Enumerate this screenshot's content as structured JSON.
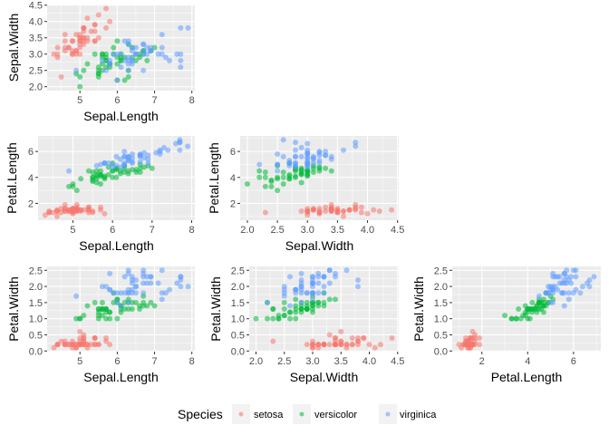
{
  "legend": {
    "title": "Species",
    "entries": [
      {
        "label": "setosa",
        "color": "#F8766D"
      },
      {
        "label": "versicolor",
        "color": "#00BA38"
      },
      {
        "label": "virginica",
        "color": "#619CFF"
      }
    ],
    "placement": "bottom"
  },
  "chart_data": {
    "type": "scatter",
    "title": "",
    "grid": true,
    "panels": [
      {
        "x": "Sepal.Length",
        "y": "Sepal.Width",
        "xlabel": "Sepal.Length",
        "ylabel": "Sepal.Width",
        "xlim": [
          4.12,
          8.08
        ],
        "ylim": [
          1.88,
          4.52
        ],
        "xticks": [
          "5",
          "6",
          "7",
          "8"
        ],
        "yticks": [
          "2.0",
          "2.5",
          "3.0",
          "3.5",
          "4.0",
          "4.5"
        ]
      },
      {
        "x": "Sepal.Length",
        "y": "Petal.Length",
        "xlabel": "Sepal.Length",
        "ylabel": "Petal.Length",
        "xlim": [
          4.12,
          8.08
        ],
        "ylim": [
          0.705,
          7.195
        ],
        "xticks": [
          "5",
          "6",
          "7",
          "8"
        ],
        "yticks": [
          "2",
          "4",
          "6"
        ]
      },
      {
        "x": "Sepal.Width",
        "y": "Petal.Length",
        "xlabel": "Sepal.Width",
        "ylabel": "Petal.Length",
        "xlim": [
          1.88,
          4.52
        ],
        "ylim": [
          0.705,
          7.195
        ],
        "xticks": [
          "2.0",
          "2.5",
          "3.0",
          "3.5",
          "4.0",
          "4.5"
        ],
        "yticks": [
          "2",
          "4",
          "6"
        ]
      },
      {
        "x": "Sepal.Length",
        "y": "Petal.Width",
        "xlabel": "Sepal.Length",
        "ylabel": "Petal.Width",
        "xlim": [
          4.12,
          8.08
        ],
        "ylim": [
          -0.02,
          2.62
        ],
        "xticks": [
          "5",
          "6",
          "7",
          "8"
        ],
        "yticks": [
          "0.0",
          "0.5",
          "1.0",
          "1.5",
          "2.0",
          "2.5"
        ]
      },
      {
        "x": "Sepal.Width",
        "y": "Petal.Width",
        "xlabel": "Sepal.Width",
        "ylabel": "Petal.Width",
        "xlim": [
          1.88,
          4.52
        ],
        "ylim": [
          -0.02,
          2.62
        ],
        "xticks": [
          "2.0",
          "2.5",
          "3.0",
          "3.5",
          "4.0",
          "4.5"
        ],
        "yticks": [
          "0.0",
          "0.5",
          "1.0",
          "1.5",
          "2.0",
          "2.5"
        ]
      },
      {
        "x": "Petal.Length",
        "y": "Petal.Width",
        "xlabel": "Petal.Length",
        "ylabel": "Petal.Width",
        "xlim": [
          0.705,
          7.195
        ],
        "ylim": [
          -0.02,
          2.62
        ],
        "xticks": [
          "2",
          "4",
          "6"
        ],
        "yticks": [
          "0.0",
          "0.5",
          "1.0",
          "1.5",
          "2.0",
          "2.5"
        ]
      }
    ],
    "series": [
      {
        "name": "setosa",
        "points": [
          [
            5.1,
            3.5,
            1.4,
            0.2
          ],
          [
            4.9,
            3.0,
            1.4,
            0.2
          ],
          [
            4.7,
            3.2,
            1.3,
            0.2
          ],
          [
            4.6,
            3.1,
            1.5,
            0.2
          ],
          [
            5.0,
            3.6,
            1.4,
            0.2
          ],
          [
            5.4,
            3.9,
            1.7,
            0.4
          ],
          [
            4.6,
            3.4,
            1.4,
            0.3
          ],
          [
            5.0,
            3.4,
            1.5,
            0.2
          ],
          [
            4.4,
            2.9,
            1.4,
            0.2
          ],
          [
            4.9,
            3.1,
            1.5,
            0.1
          ],
          [
            5.4,
            3.7,
            1.5,
            0.2
          ],
          [
            4.8,
            3.4,
            1.6,
            0.2
          ],
          [
            4.8,
            3.0,
            1.4,
            0.1
          ],
          [
            4.3,
            3.0,
            1.1,
            0.1
          ],
          [
            5.8,
            4.0,
            1.2,
            0.2
          ],
          [
            5.7,
            4.4,
            1.5,
            0.4
          ],
          [
            5.4,
            3.9,
            1.3,
            0.4
          ],
          [
            5.1,
            3.5,
            1.4,
            0.3
          ],
          [
            5.7,
            3.8,
            1.7,
            0.3
          ],
          [
            5.1,
            3.8,
            1.5,
            0.3
          ],
          [
            5.4,
            3.4,
            1.7,
            0.2
          ],
          [
            5.1,
            3.7,
            1.5,
            0.4
          ],
          [
            4.6,
            3.6,
            1.0,
            0.2
          ],
          [
            5.1,
            3.3,
            1.7,
            0.5
          ],
          [
            4.8,
            3.4,
            1.9,
            0.2
          ],
          [
            5.0,
            3.0,
            1.6,
            0.2
          ],
          [
            5.0,
            3.4,
            1.6,
            0.4
          ],
          [
            5.2,
            3.5,
            1.5,
            0.2
          ],
          [
            5.2,
            3.4,
            1.4,
            0.2
          ],
          [
            4.7,
            3.2,
            1.6,
            0.2
          ],
          [
            4.8,
            3.1,
            1.6,
            0.2
          ],
          [
            5.4,
            3.4,
            1.5,
            0.4
          ],
          [
            5.2,
            4.1,
            1.5,
            0.1
          ],
          [
            5.5,
            4.2,
            1.4,
            0.2
          ],
          [
            4.9,
            3.1,
            1.5,
            0.2
          ],
          [
            5.0,
            3.2,
            1.2,
            0.2
          ],
          [
            5.5,
            3.5,
            1.3,
            0.2
          ],
          [
            4.9,
            3.6,
            1.4,
            0.1
          ],
          [
            4.4,
            3.0,
            1.3,
            0.2
          ],
          [
            5.1,
            3.4,
            1.5,
            0.2
          ],
          [
            5.0,
            3.5,
            1.3,
            0.3
          ],
          [
            4.5,
            2.3,
            1.3,
            0.3
          ],
          [
            4.4,
            3.2,
            1.3,
            0.2
          ],
          [
            5.0,
            3.5,
            1.6,
            0.6
          ],
          [
            5.1,
            3.8,
            1.9,
            0.4
          ],
          [
            4.8,
            3.0,
            1.4,
            0.3
          ],
          [
            5.1,
            3.8,
            1.6,
            0.2
          ],
          [
            4.6,
            3.2,
            1.4,
            0.2
          ],
          [
            5.3,
            3.7,
            1.5,
            0.2
          ],
          [
            5.0,
            3.3,
            1.4,
            0.2
          ]
        ]
      },
      {
        "name": "versicolor",
        "points": [
          [
            7.0,
            3.2,
            4.7,
            1.4
          ],
          [
            6.4,
            3.2,
            4.5,
            1.5
          ],
          [
            6.9,
            3.1,
            4.9,
            1.5
          ],
          [
            5.5,
            2.3,
            4.0,
            1.3
          ],
          [
            6.5,
            2.8,
            4.6,
            1.5
          ],
          [
            5.7,
            2.8,
            4.5,
            1.3
          ],
          [
            6.3,
            3.3,
            4.7,
            1.6
          ],
          [
            4.9,
            2.4,
            3.3,
            1.0
          ],
          [
            6.6,
            2.9,
            4.6,
            1.3
          ],
          [
            5.2,
            2.7,
            3.9,
            1.4
          ],
          [
            5.0,
            2.0,
            3.5,
            1.0
          ],
          [
            5.9,
            3.0,
            4.2,
            1.5
          ],
          [
            6.0,
            2.2,
            4.0,
            1.0
          ],
          [
            6.1,
            2.9,
            4.7,
            1.4
          ],
          [
            5.6,
            2.9,
            3.6,
            1.3
          ],
          [
            6.7,
            3.1,
            4.4,
            1.4
          ],
          [
            5.6,
            3.0,
            4.5,
            1.5
          ],
          [
            5.8,
            2.7,
            4.1,
            1.0
          ],
          [
            6.2,
            2.2,
            4.5,
            1.5
          ],
          [
            5.6,
            2.5,
            3.9,
            1.1
          ],
          [
            5.9,
            3.2,
            4.8,
            1.8
          ],
          [
            6.1,
            2.8,
            4.0,
            1.3
          ],
          [
            6.3,
            2.5,
            4.9,
            1.5
          ],
          [
            6.1,
            2.8,
            4.7,
            1.2
          ],
          [
            6.4,
            2.9,
            4.3,
            1.3
          ],
          [
            6.6,
            3.0,
            4.4,
            1.4
          ],
          [
            6.8,
            2.8,
            4.8,
            1.4
          ],
          [
            6.7,
            3.0,
            5.0,
            1.7
          ],
          [
            6.0,
            2.9,
            4.5,
            1.5
          ],
          [
            5.7,
            2.6,
            3.5,
            1.0
          ],
          [
            5.5,
            2.4,
            3.8,
            1.1
          ],
          [
            5.5,
            2.4,
            3.7,
            1.0
          ],
          [
            5.8,
            2.7,
            3.9,
            1.2
          ],
          [
            6.0,
            2.7,
            5.1,
            1.6
          ],
          [
            5.4,
            3.0,
            4.5,
            1.5
          ],
          [
            6.0,
            3.4,
            4.5,
            1.6
          ],
          [
            6.7,
            3.1,
            4.7,
            1.5
          ],
          [
            6.3,
            2.3,
            4.4,
            1.3
          ],
          [
            5.6,
            3.0,
            4.1,
            1.3
          ],
          [
            5.5,
            2.5,
            4.0,
            1.3
          ],
          [
            5.5,
            2.6,
            4.4,
            1.2
          ],
          [
            6.1,
            3.0,
            4.6,
            1.4
          ],
          [
            5.8,
            2.6,
            4.0,
            1.2
          ],
          [
            5.0,
            2.3,
            3.3,
            1.0
          ],
          [
            5.6,
            2.7,
            4.2,
            1.3
          ],
          [
            5.7,
            3.0,
            4.2,
            1.2
          ],
          [
            5.7,
            2.9,
            4.2,
            1.3
          ],
          [
            6.2,
            2.9,
            4.3,
            1.3
          ],
          [
            5.1,
            2.5,
            3.0,
            1.1
          ],
          [
            5.7,
            2.8,
            4.1,
            1.3
          ]
        ]
      },
      {
        "name": "virginica",
        "points": [
          [
            6.3,
            3.3,
            6.0,
            2.5
          ],
          [
            5.8,
            2.7,
            5.1,
            1.9
          ],
          [
            7.1,
            3.0,
            5.9,
            2.1
          ],
          [
            6.3,
            2.9,
            5.6,
            1.8
          ],
          [
            6.5,
            3.0,
            5.8,
            2.2
          ],
          [
            7.6,
            3.0,
            6.6,
            2.1
          ],
          [
            4.9,
            2.5,
            4.5,
            1.7
          ],
          [
            7.3,
            2.9,
            6.3,
            1.8
          ],
          [
            6.7,
            2.5,
            5.8,
            1.8
          ],
          [
            7.2,
            3.6,
            6.1,
            2.5
          ],
          [
            6.5,
            3.2,
            5.1,
            2.0
          ],
          [
            6.4,
            2.7,
            5.3,
            1.9
          ],
          [
            6.8,
            3.0,
            5.5,
            2.1
          ],
          [
            5.7,
            2.5,
            5.0,
            2.0
          ],
          [
            5.8,
            2.8,
            5.1,
            2.4
          ],
          [
            6.4,
            3.2,
            5.3,
            2.3
          ],
          [
            6.5,
            3.0,
            5.5,
            1.8
          ],
          [
            7.7,
            3.8,
            6.7,
            2.2
          ],
          [
            7.7,
            2.6,
            6.9,
            2.3
          ],
          [
            6.0,
            2.2,
            5.0,
            1.5
          ],
          [
            6.9,
            3.2,
            5.7,
            2.3
          ],
          [
            5.6,
            2.8,
            4.9,
            2.0
          ],
          [
            7.7,
            2.8,
            6.7,
            2.0
          ],
          [
            6.3,
            2.7,
            4.9,
            1.8
          ],
          [
            6.7,
            3.3,
            5.7,
            2.1
          ],
          [
            7.2,
            3.2,
            6.0,
            1.8
          ],
          [
            6.2,
            2.8,
            4.8,
            1.8
          ],
          [
            6.1,
            3.0,
            4.9,
            1.8
          ],
          [
            6.4,
            2.8,
            5.6,
            2.1
          ],
          [
            7.2,
            3.0,
            5.8,
            1.6
          ],
          [
            7.4,
            2.8,
            6.1,
            1.9
          ],
          [
            7.9,
            3.8,
            6.4,
            2.0
          ],
          [
            6.4,
            2.8,
            5.6,
            2.2
          ],
          [
            6.3,
            2.8,
            5.1,
            1.5
          ],
          [
            6.1,
            2.6,
            5.6,
            1.4
          ],
          [
            7.7,
            3.0,
            6.1,
            2.3
          ],
          [
            6.3,
            3.4,
            5.6,
            2.4
          ],
          [
            6.4,
            3.1,
            5.5,
            1.8
          ],
          [
            6.0,
            3.0,
            4.8,
            1.8
          ],
          [
            6.9,
            3.1,
            5.4,
            2.1
          ],
          [
            6.7,
            3.1,
            5.6,
            2.4
          ],
          [
            6.9,
            3.1,
            5.1,
            2.3
          ],
          [
            5.8,
            2.7,
            5.1,
            1.9
          ],
          [
            6.8,
            3.2,
            5.9,
            2.3
          ],
          [
            6.7,
            3.3,
            5.7,
            2.5
          ],
          [
            6.7,
            3.0,
            5.2,
            2.3
          ],
          [
            6.3,
            2.5,
            5.0,
            1.9
          ],
          [
            6.5,
            3.0,
            5.2,
            2.0
          ],
          [
            6.2,
            3.4,
            5.4,
            2.3
          ],
          [
            5.9,
            3.0,
            5.1,
            1.8
          ]
        ]
      }
    ],
    "variables": [
      "Sepal.Length",
      "Sepal.Width",
      "Petal.Length",
      "Petal.Width"
    ]
  }
}
